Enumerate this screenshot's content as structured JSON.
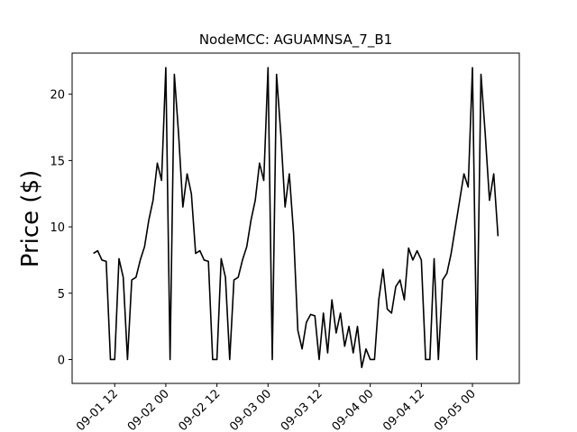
{
  "chart_data": {
    "type": "line",
    "title": "NodeMCC: AGUAMNSA_7_B1",
    "y_label": "Price ($)",
    "x": [
      "09-01 07",
      "09-01 08",
      "09-01 09",
      "09-01 10",
      "09-01 11",
      "09-01 12",
      "09-01 13",
      "09-01 14",
      "09-01 15",
      "09-01 16",
      "09-01 17",
      "09-01 18",
      "09-01 19",
      "09-01 20",
      "09-01 21",
      "09-01 22",
      "09-01 23",
      "09-02 00",
      "09-02 01",
      "09-02 02",
      "09-02 03",
      "09-02 04",
      "09-02 05",
      "09-02 06",
      "09-02 07",
      "09-02 08",
      "09-02 09",
      "09-02 10",
      "09-02 11",
      "09-02 12",
      "09-02 13",
      "09-02 14",
      "09-02 15",
      "09-02 16",
      "09-02 17",
      "09-02 18",
      "09-02 19",
      "09-02 20",
      "09-02 21",
      "09-02 22",
      "09-02 23",
      "09-03 00",
      "09-03 01",
      "09-03 02",
      "09-03 03",
      "09-03 04",
      "09-03 05",
      "09-03 06",
      "09-03 07",
      "09-03 08",
      "09-03 09",
      "09-03 10",
      "09-03 11",
      "09-03 12",
      "09-03 13",
      "09-03 14",
      "09-03 15",
      "09-03 16",
      "09-03 17",
      "09-03 18",
      "09-03 19",
      "09-03 20",
      "09-03 21",
      "09-03 22",
      "09-03 23",
      "09-04 00",
      "09-04 01",
      "09-04 02",
      "09-04 03",
      "09-04 04",
      "09-04 05",
      "09-04 06",
      "09-04 07",
      "09-04 08",
      "09-04 09",
      "09-04 10",
      "09-04 11",
      "09-04 12",
      "09-04 13",
      "09-04 14",
      "09-04 15",
      "09-04 16",
      "09-04 17",
      "09-04 18",
      "09-04 19",
      "09-04 20",
      "09-04 21",
      "09-04 22",
      "09-04 23",
      "09-05 00",
      "09-05 01",
      "09-05 02",
      "09-05 03",
      "09-05 04",
      "09-05 05",
      "09-05 06"
    ],
    "series": [
      {
        "name": "AGUAMNSA_7_B1",
        "color": "#000000",
        "values": [
          8,
          8.2,
          7.5,
          7.4,
          0,
          0,
          7.6,
          6.2,
          0,
          6,
          6.2,
          7.5,
          8.5,
          10.5,
          12,
          14.8,
          13.5,
          22,
          0,
          21.5,
          17,
          11.5,
          14,
          12.5,
          8,
          8.2,
          7.5,
          7.4,
          0,
          0,
          7.6,
          6.2,
          0,
          6,
          6.2,
          7.5,
          8.5,
          10.5,
          12,
          14.8,
          13.5,
          22,
          0,
          21.5,
          17,
          11.5,
          14,
          9.5,
          2.2,
          0.8,
          2.8,
          3.4,
          3.3,
          0,
          3.5,
          0.5,
          4.5,
          2,
          3.5,
          1,
          2.5,
          0.5,
          2.5,
          -0.6,
          0.8,
          0,
          0,
          4.5,
          6.8,
          3.8,
          3.5,
          5.5,
          6,
          4.5,
          8.4,
          7.5,
          8.2,
          7.5,
          0,
          0,
          7.6,
          0,
          6,
          6.5,
          8,
          10,
          12,
          14,
          13,
          22,
          0,
          21.5,
          17,
          12,
          14,
          9.3
        ]
      }
    ],
    "xlim": [
      "09-01 02",
      "09-05 11"
    ],
    "xticks": [
      "09-01 12",
      "09-02 00",
      "09-02 12",
      "09-03 00",
      "09-03 12",
      "09-04 00",
      "09-04 12",
      "09-05 00"
    ],
    "ylim": [
      -1.8,
      23.1
    ],
    "yticks": [
      0,
      5,
      10,
      15,
      20
    ]
  }
}
